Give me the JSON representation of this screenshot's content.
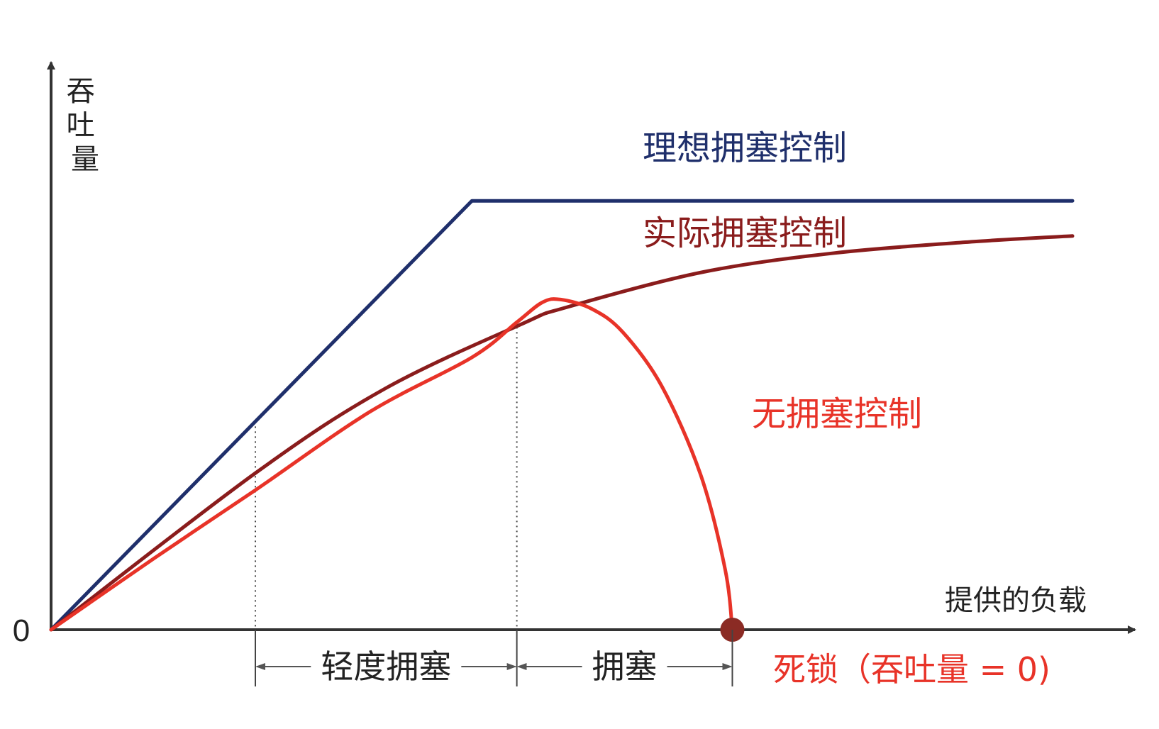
{
  "chart_data": {
    "type": "line",
    "x_axis_label": "提供的负载",
    "y_axis_label": "吞吐量",
    "origin_label": "0",
    "x_range": [
      0,
      1
    ],
    "y_range": [
      0,
      1
    ],
    "series": [
      {
        "name": "理想拥塞控制",
        "color": "#1f2f6b",
        "x": [
          0.0,
          0.412,
          1.0
        ],
        "y": [
          0.0,
          0.756,
          0.756
        ]
      },
      {
        "name": "实际拥塞控制",
        "color": "#8a1c1c",
        "x": [
          0.0,
          0.2,
          0.327,
          0.461,
          0.504,
          0.637,
          0.767,
          0.903,
          1.0
        ],
        "y": [
          0.0,
          0.276,
          0.425,
          0.539,
          0.568,
          0.63,
          0.664,
          0.684,
          0.694
        ]
      },
      {
        "name": "无拥塞控制",
        "color": "#e83328",
        "x": [
          0.0,
          0.101,
          0.2,
          0.312,
          0.412,
          0.456,
          0.481,
          0.499,
          0.53,
          0.56,
          0.598,
          0.636,
          0.66,
          0.667
        ],
        "y": [
          0.0,
          0.126,
          0.246,
          0.384,
          0.48,
          0.542,
          0.577,
          0.582,
          0.565,
          0.524,
          0.429,
          0.273,
          0.106,
          0.0
        ]
      }
    ],
    "deadlock_point": {
      "x": 0.667,
      "y": 0.0,
      "color": "#8b2b24"
    },
    "regions": [
      {
        "label": "轻度拥塞",
        "x_start": 0.2,
        "x_end": 0.456
      },
      {
        "label": "拥塞",
        "x_start": 0.456,
        "x_end": 0.667
      }
    ],
    "annotation": {
      "text": "死锁（吞吐量 = 0)",
      "color": "#e83328"
    },
    "grid": false,
    "legend": "inline labels"
  }
}
